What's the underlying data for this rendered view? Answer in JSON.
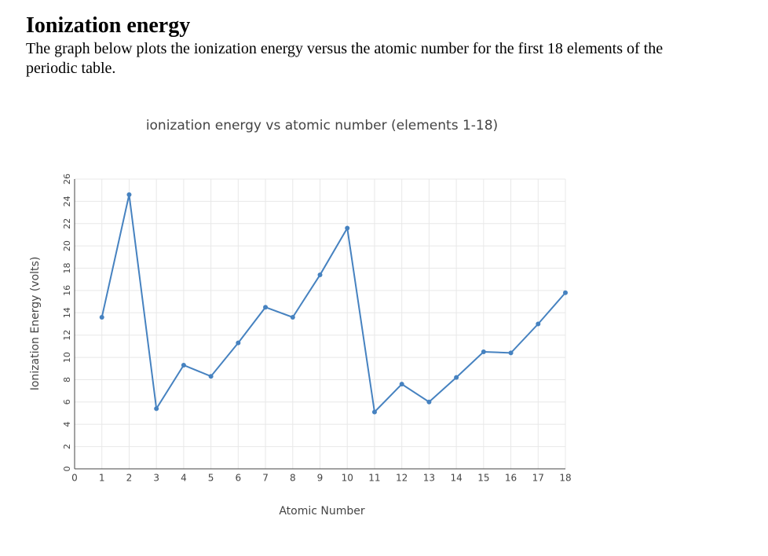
{
  "header": {
    "title": "Ionization energy",
    "text": "The graph below plots the ionization energy versus the atomic number for the first 18 elements of the periodic table."
  },
  "chart_data": {
    "type": "line",
    "title": "ionization energy vs atomic number (elements 1-18)",
    "x_label": "Atomic Number",
    "y_label": "Ionization Energy (volts)",
    "x": [
      1,
      2,
      3,
      4,
      5,
      6,
      7,
      8,
      9,
      10,
      11,
      12,
      13,
      14,
      15,
      16,
      17,
      18
    ],
    "series": [
      {
        "name": "Ionization energy",
        "color": "#4682c0",
        "values": [
          13.6,
          24.6,
          5.4,
          9.3,
          8.3,
          11.3,
          14.5,
          13.6,
          17.4,
          21.6,
          5.1,
          7.6,
          6.0,
          8.2,
          10.5,
          10.4,
          13.0,
          15.8
        ]
      }
    ],
    "xlim": [
      0,
      18
    ],
    "xticks": [
      0,
      1,
      2,
      3,
      4,
      5,
      6,
      7,
      8,
      9,
      10,
      11,
      12,
      13,
      14,
      15,
      16,
      17,
      18
    ],
    "ylim": [
      0,
      26
    ],
    "yticks": [
      0,
      2,
      4,
      6,
      8,
      10,
      12,
      14,
      16,
      18,
      20,
      22,
      24,
      26
    ],
    "grid": true
  }
}
